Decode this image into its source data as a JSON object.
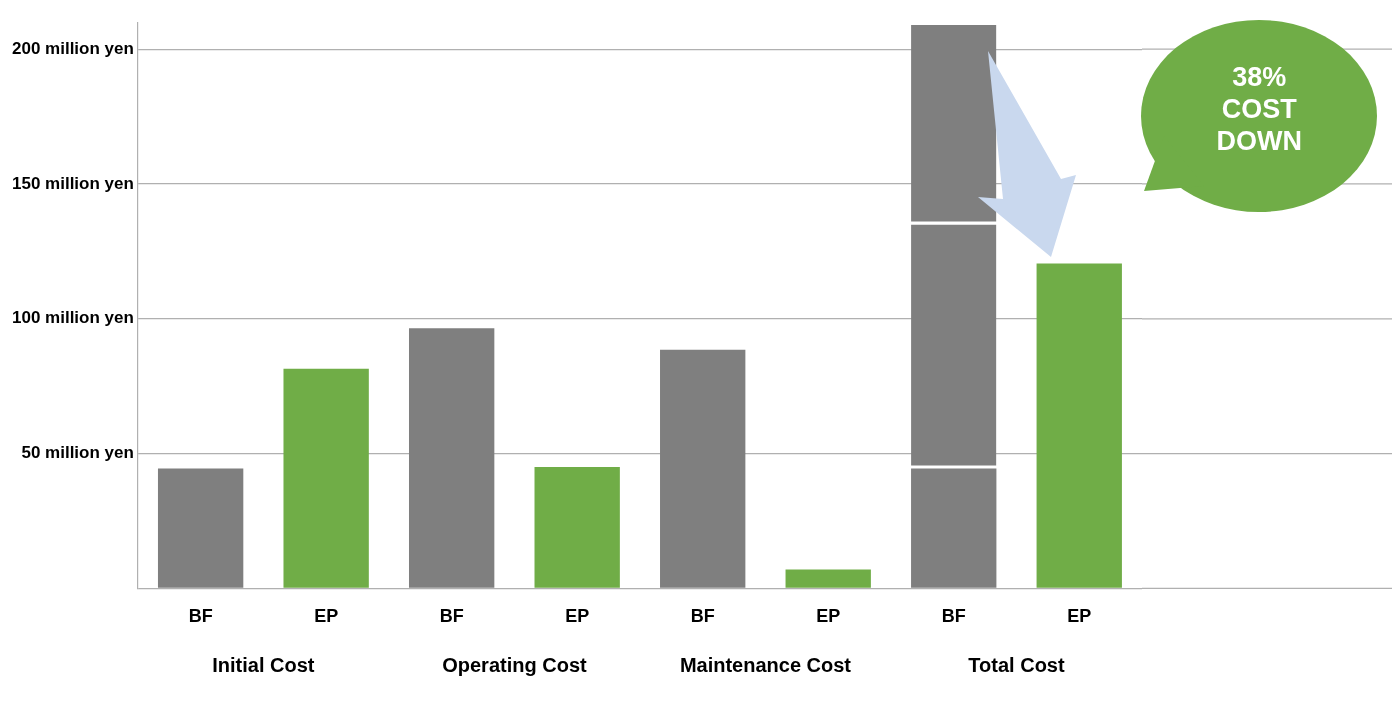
{
  "chart_data": {
    "type": "bar",
    "stacked": true,
    "categories": [
      "BF",
      "EP",
      "BF",
      "EP",
      "BF",
      "EP",
      "BF",
      "EP"
    ],
    "series": [
      {
        "colors": [
          "#7f7f7f",
          "#70ad47",
          "#7f7f7f",
          "#70ad47",
          "#7f7f7f",
          "#70ad47",
          "#7f7f7f",
          "#70ad47"
        ],
        "values": [
          44.5,
          81.5,
          96.5,
          45,
          88.5,
          7,
          44.5,
          120.5
        ]
      },
      {
        "color": "#7f7f7f",
        "values": [
          null,
          null,
          null,
          null,
          null,
          null,
          90.5,
          null
        ]
      },
      {
        "color": "#7f7f7f",
        "values": [
          null,
          null,
          null,
          null,
          null,
          null,
          74,
          null
        ]
      }
    ],
    "ylim": [
      0,
      210
    ],
    "yticks": [
      {
        "value": 0,
        "label": null
      },
      {
        "value": 50,
        "label": "50 million yen"
      },
      {
        "value": 100,
        "label": "100 million yen"
      },
      {
        "value": 150,
        "label": "150 million yen"
      },
      {
        "value": 200,
        "label": "200 million yen"
      }
    ],
    "grid": "y",
    "annotations": [
      "Initial Cost",
      "Operating Cost",
      "Maintenance Cost",
      "Total Cost",
      "38%\nCOST\nDOWN"
    ]
  }
}
